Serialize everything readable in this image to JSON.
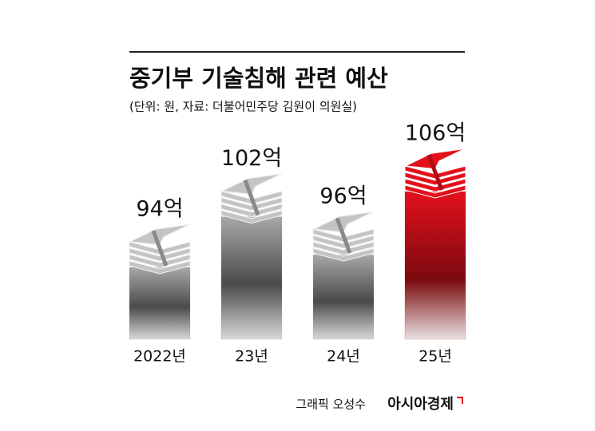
{
  "chart_data": {
    "type": "bar",
    "title": "중기부 기술침해 관련 예산",
    "subtitle": "(단위: 원, 자료: 더불어민주당 김원이 의원실)",
    "categories": [
      "2022년",
      "23년",
      "24년",
      "25년"
    ],
    "values": [
      94,
      102,
      96,
      106
    ],
    "value_labels": [
      "94억",
      "102억",
      "96억",
      "106억"
    ],
    "colors": [
      "#8c8c8c",
      "#8c8c8c",
      "#8c8c8c",
      "#e3101c"
    ],
    "credit": "그래픽 오성수",
    "source": "아시아경제"
  }
}
